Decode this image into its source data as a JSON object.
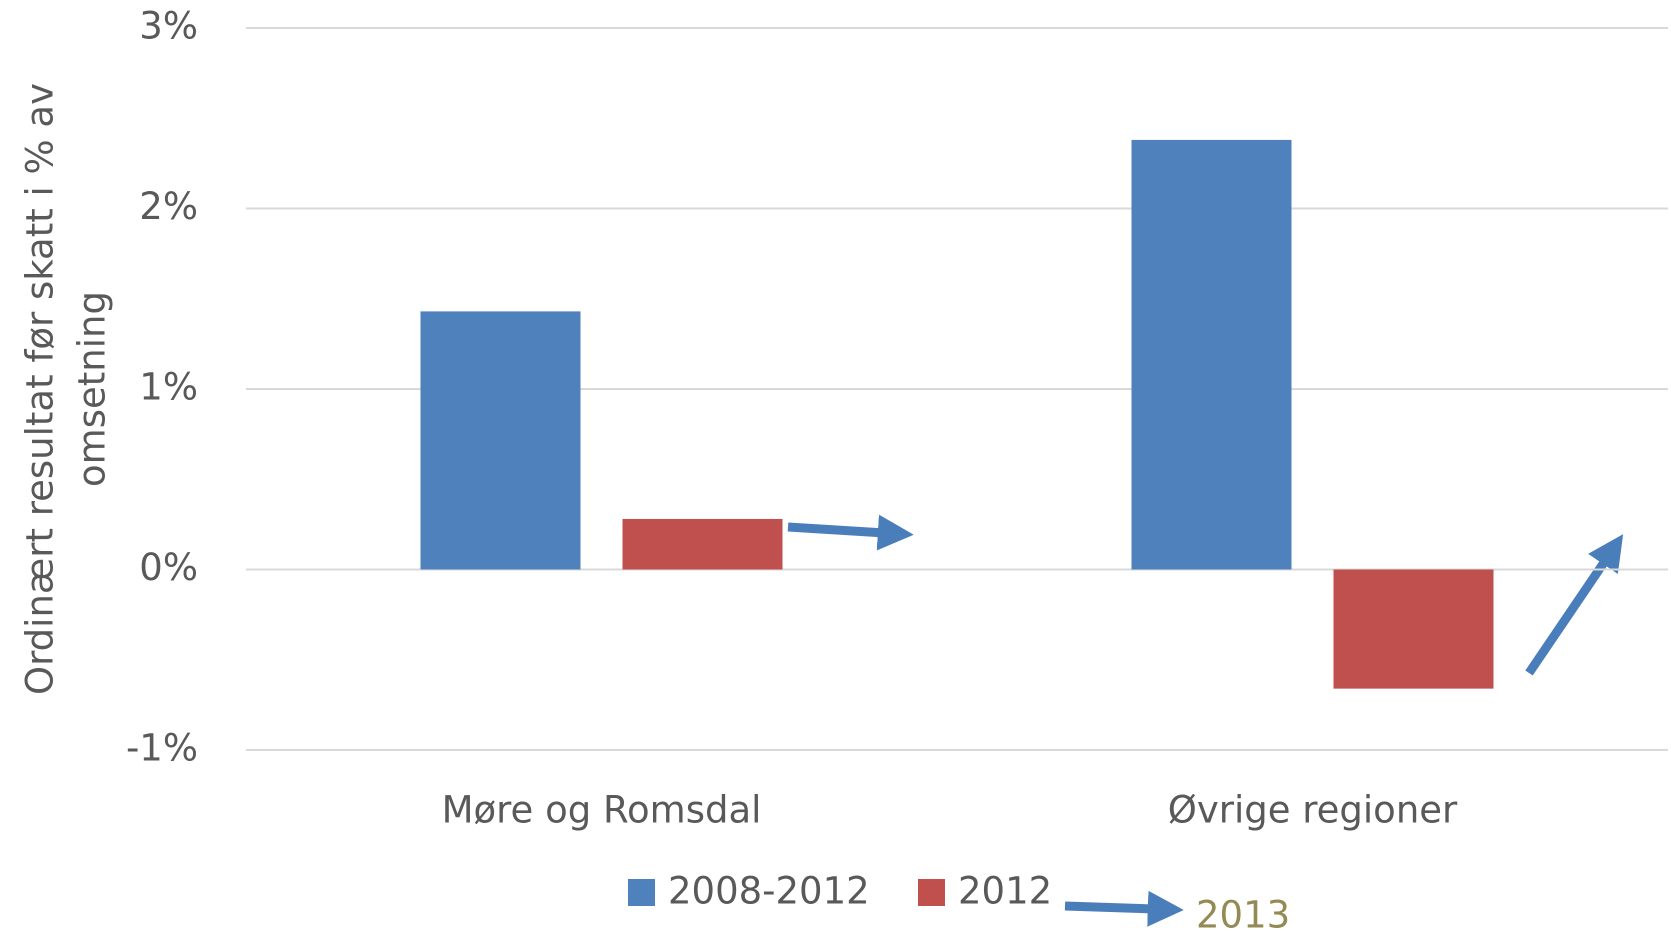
{
  "chart_data": {
    "type": "bar",
    "y_label": [
      "Ordinært resultat før skatt i % av",
      "omsetning"
    ],
    "categories": [
      "Møre og Romsdal",
      "Øvrige regioner"
    ],
    "series": [
      {
        "name": "2008-2012",
        "color": "#4f81bd",
        "values": [
          1.43,
          2.38
        ]
      },
      {
        "name": "2012",
        "color": "#c0504d",
        "values": [
          0.28,
          -0.66
        ]
      }
    ],
    "ylim": [
      -1,
      3
    ],
    "yticks": [
      {
        "value": -1,
        "label": "-1%"
      },
      {
        "value": 0,
        "label": "0%"
      },
      {
        "value": 1,
        "label": "1%"
      },
      {
        "value": 2,
        "label": "2%"
      },
      {
        "value": 3,
        "label": "3%"
      }
    ],
    "grid": true,
    "annotation": "2013"
  }
}
